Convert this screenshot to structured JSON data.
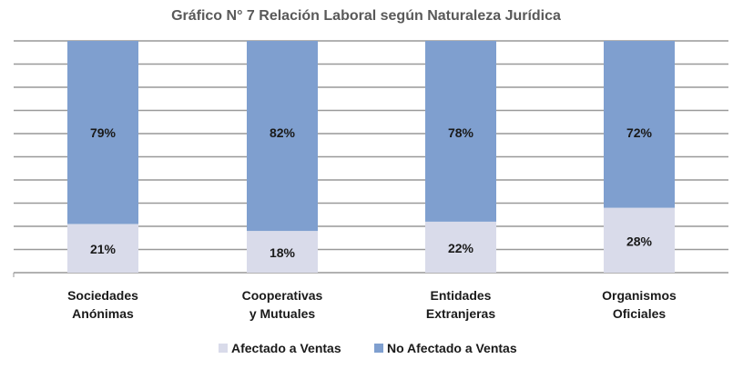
{
  "chart_data": {
    "type": "bar",
    "stacked": true,
    "title": "Gráfico N° 7 Relación Laboral según Naturaleza Jurídica",
    "categories": [
      [
        "Sociedades",
        "Anónimas"
      ],
      [
        "Cooperativas",
        "y Mutuales"
      ],
      [
        "Entidades",
        "Extranjeras"
      ],
      [
        "Organismos",
        "Oficiales"
      ]
    ],
    "series": [
      {
        "name": "Afectado a Ventas",
        "values": [
          21,
          18,
          22,
          28
        ],
        "labels": [
          "21%",
          "18%",
          "22%",
          "28%"
        ],
        "color": "#d9dbea"
      },
      {
        "name": "No Afectado a Ventas",
        "values": [
          79,
          82,
          78,
          72
        ],
        "labels": [
          "79%",
          "82%",
          "78%",
          "72%"
        ],
        "color": "#7f9fcf"
      }
    ],
    "ylim": [
      0,
      100
    ],
    "grid": true,
    "legend": "bottom"
  }
}
